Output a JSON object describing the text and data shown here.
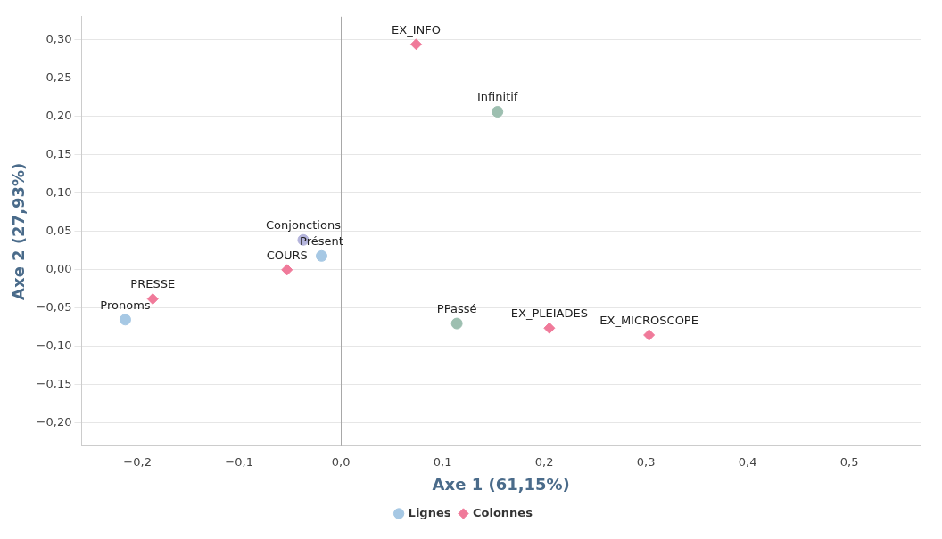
{
  "chart_data": {
    "type": "scatter",
    "xlabel": "Axe 1 (61,15%)",
    "ylabel": "Axe 2 (27,93%)",
    "xlim": [
      -0.255,
      0.57
    ],
    "ylim": [
      -0.23,
      0.33
    ],
    "xticks": [
      {
        "value": -0.2,
        "label": "−0,2"
      },
      {
        "value": -0.1,
        "label": "−0,1"
      },
      {
        "value": 0,
        "label": "0,0"
      },
      {
        "value": 0.1,
        "label": "0,1"
      },
      {
        "value": 0.2,
        "label": "0,2"
      },
      {
        "value": 0.3,
        "label": "0,3"
      },
      {
        "value": 0.4,
        "label": "0,4"
      },
      {
        "value": 0.5,
        "label": "0,5"
      }
    ],
    "yticks": [
      {
        "value": -0.2,
        "label": "−0,20"
      },
      {
        "value": -0.15,
        "label": "−0,15"
      },
      {
        "value": -0.1,
        "label": "−0,10"
      },
      {
        "value": -0.05,
        "label": "−0,05"
      },
      {
        "value": 0,
        "label": "0,00"
      },
      {
        "value": 0.05,
        "label": "0,05"
      },
      {
        "value": 0.1,
        "label": "0,10"
      },
      {
        "value": 0.15,
        "label": "0,15"
      },
      {
        "value": 0.2,
        "label": "0,20"
      },
      {
        "value": 0.25,
        "label": "0,25"
      },
      {
        "value": 0.3,
        "label": "0,30"
      }
    ],
    "grid": "y",
    "legend": "bottom",
    "ref_lines": [
      {
        "axis": "x",
        "value": 0,
        "color": "#a8a8a8"
      }
    ],
    "series": [
      {
        "name": "Lignes",
        "color": "#a6c8e4",
        "marker": "circle",
        "x": [
          -0.212,
          -0.037,
          -0.019,
          0.154,
          0.114
        ],
        "values": [
          -0.065,
          0.039,
          0.018,
          0.206,
          -0.07
        ],
        "colors": [
          "#a6c8e4",
          "#b4b4dc",
          "#a6c8e4",
          "#9dbfb0",
          "#9dbfb0"
        ]
      },
      {
        "name": "Colonnes",
        "color": "#f07a9a",
        "marker": "diamond",
        "x": [
          0.074,
          -0.053,
          -0.185,
          0.205,
          0.303
        ],
        "values": [
          0.294,
          0.0,
          -0.038,
          -0.076,
          -0.085
        ]
      }
    ],
    "annotations": [
      {
        "text": "Pronoms",
        "x": -0.212,
        "y": -0.065
      },
      {
        "text": "Conjonctions",
        "x": -0.037,
        "y": 0.039
      },
      {
        "text": "Présent",
        "x": -0.019,
        "y": 0.018
      },
      {
        "text": "Infinitif",
        "x": 0.154,
        "y": 0.206
      },
      {
        "text": "PPassé",
        "x": 0.114,
        "y": -0.07
      },
      {
        "text": "EX_INFO",
        "x": 0.074,
        "y": 0.294
      },
      {
        "text": "COURS",
        "x": -0.053,
        "y": 0.0
      },
      {
        "text": "PRESSE",
        "x": -0.185,
        "y": -0.038
      },
      {
        "text": "EX_PLEIADES",
        "x": 0.205,
        "y": -0.076
      },
      {
        "text": "EX_MICROSCOPE",
        "x": 0.303,
        "y": -0.085
      }
    ]
  }
}
